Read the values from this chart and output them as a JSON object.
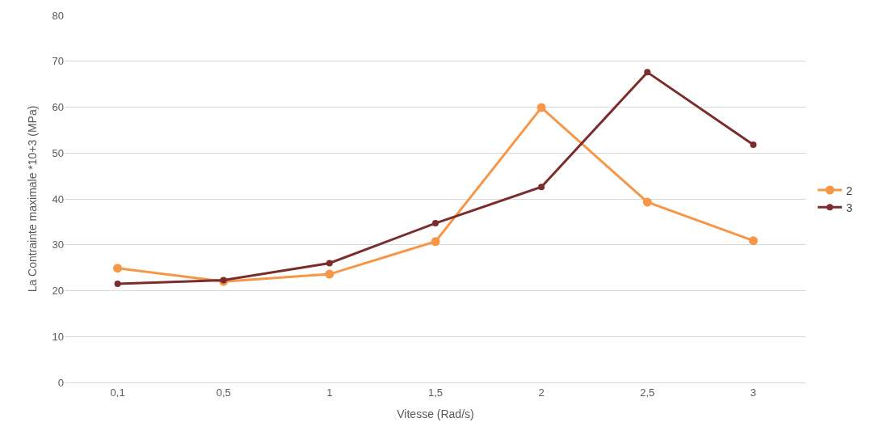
{
  "chart_data": {
    "type": "line",
    "xlabel": "Vitesse (Rad/s)",
    "ylabel": "La Contrainte maximale *10+3 (MPa)",
    "categories": [
      "0,1",
      "0,5",
      "1",
      "1,5",
      "2",
      "2,5",
      "3"
    ],
    "series": [
      {
        "name": "2",
        "color": "#f79646",
        "values": [
          24.9,
          22.0,
          23.6,
          30.7,
          59.9,
          39.3,
          30.9
        ]
      },
      {
        "name": "3",
        "color": "#7b2c2c",
        "values": [
          21.5,
          22.3,
          26.0,
          34.7,
          42.6,
          67.6,
          51.8
        ]
      }
    ],
    "ylim": [
      0,
      80
    ],
    "yticks": [
      0,
      10,
      20,
      30,
      40,
      50,
      60,
      70,
      80
    ],
    "grid": "y",
    "legend": "right",
    "marker": "circle",
    "line_style": "solid"
  }
}
